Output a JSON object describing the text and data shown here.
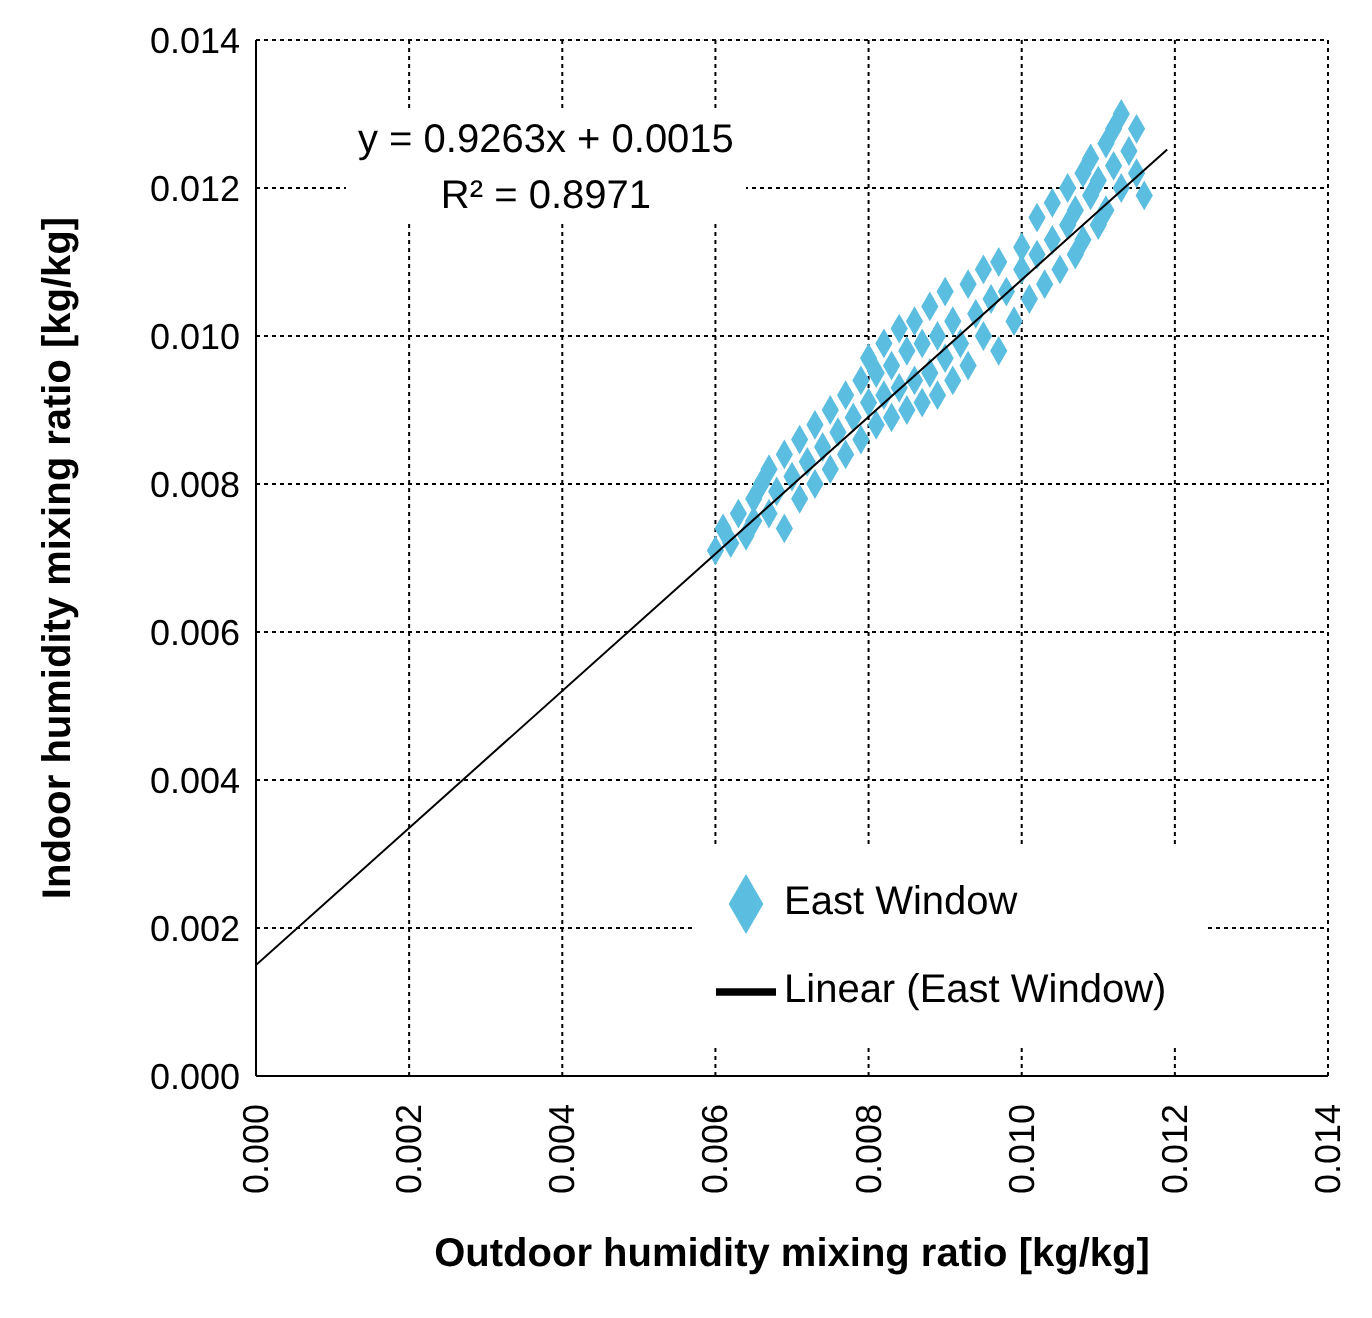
{
  "chart_data": {
    "type": "scatter",
    "xlabel": "Outdoor humidity mixing ratio [kg/kg]",
    "ylabel": "Indoor humidity mixing ratio [kg/kg]",
    "annotations": [
      "y = 0.9263x + 0.0015",
      "R² = 0.8971"
    ],
    "xlim": [
      0,
      0.014
    ],
    "ylim": [
      0,
      0.014
    ],
    "xticks": [
      {
        "value": 0,
        "label": "0.000"
      },
      {
        "value": 0.002,
        "label": "0.002"
      },
      {
        "value": 0.004,
        "label": "0.004"
      },
      {
        "value": 0.006,
        "label": "0.006"
      },
      {
        "value": 0.008,
        "label": "0.008"
      },
      {
        "value": 0.01,
        "label": "0.010"
      },
      {
        "value": 0.012,
        "label": "0.012"
      },
      {
        "value": 0.014,
        "label": "0.014"
      }
    ],
    "yticks": [
      {
        "value": 0,
        "label": "0.000"
      },
      {
        "value": 0.002,
        "label": "0.002"
      },
      {
        "value": 0.004,
        "label": "0.004"
      },
      {
        "value": 0.006,
        "label": "0.006"
      },
      {
        "value": 0.008,
        "label": "0.008"
      },
      {
        "value": 0.01,
        "label": "0.010"
      },
      {
        "value": 0.012,
        "label": "0.012"
      },
      {
        "value": 0.014,
        "label": "0.014"
      }
    ],
    "grid": true,
    "legend": "bottom right",
    "marker": "diamond",
    "series": [
      {
        "name": "East Window",
        "type": "scatter",
        "color": "#5bbde0",
        "x": [
          0.006,
          0.0061,
          0.0062,
          0.0063,
          0.0064,
          0.0065,
          0.0065,
          0.0066,
          0.0067,
          0.0067,
          0.0068,
          0.0069,
          0.0069,
          0.007,
          0.0071,
          0.0071,
          0.0072,
          0.0073,
          0.0073,
          0.0074,
          0.0075,
          0.0075,
          0.0076,
          0.0077,
          0.0077,
          0.0078,
          0.0079,
          0.0079,
          0.008,
          0.008,
          0.0081,
          0.0081,
          0.0082,
          0.0082,
          0.0083,
          0.0083,
          0.0084,
          0.0084,
          0.0085,
          0.0085,
          0.0086,
          0.0086,
          0.0087,
          0.0087,
          0.0088,
          0.0088,
          0.0089,
          0.0089,
          0.009,
          0.009,
          0.0091,
          0.0091,
          0.0092,
          0.0093,
          0.0093,
          0.0094,
          0.0095,
          0.0095,
          0.0096,
          0.0097,
          0.0097,
          0.0098,
          0.0099,
          0.01,
          0.01,
          0.0101,
          0.0102,
          0.0102,
          0.0103,
          0.0104,
          0.0104,
          0.0105,
          0.0106,
          0.0106,
          0.0107,
          0.0107,
          0.0108,
          0.0108,
          0.0109,
          0.0109,
          0.011,
          0.011,
          0.0111,
          0.0111,
          0.0112,
          0.0112,
          0.0113,
          0.0113,
          0.0114,
          0.0115,
          0.0115,
          0.0116
        ],
        "values": [
          0.0071,
          0.0074,
          0.0072,
          0.0076,
          0.0073,
          0.0078,
          0.0075,
          0.008,
          0.0076,
          0.0082,
          0.0079,
          0.0074,
          0.0084,
          0.0081,
          0.0078,
          0.0086,
          0.0083,
          0.008,
          0.0088,
          0.0085,
          0.0082,
          0.009,
          0.0087,
          0.0084,
          0.0092,
          0.0089,
          0.0086,
          0.0094,
          0.0091,
          0.0097,
          0.0088,
          0.0095,
          0.0092,
          0.0099,
          0.0089,
          0.0096,
          0.0093,
          0.0101,
          0.009,
          0.0098,
          0.0094,
          0.0102,
          0.0091,
          0.0099,
          0.0095,
          0.0104,
          0.0092,
          0.01,
          0.0097,
          0.0106,
          0.0094,
          0.0102,
          0.0099,
          0.0096,
          0.0107,
          0.0103,
          0.01,
          0.0109,
          0.0105,
          0.0098,
          0.011,
          0.0106,
          0.0102,
          0.0109,
          0.0112,
          0.0105,
          0.0111,
          0.0116,
          0.0107,
          0.0113,
          0.0118,
          0.0109,
          0.0115,
          0.012,
          0.0111,
          0.0117,
          0.0122,
          0.0113,
          0.0119,
          0.0124,
          0.0115,
          0.0121,
          0.0126,
          0.0117,
          0.0123,
          0.0128,
          0.012,
          0.013,
          0.0125,
          0.0122,
          0.0128,
          0.0119
        ]
      },
      {
        "name": "Linear (East Window)",
        "type": "line",
        "color": "#000000",
        "marker": "none",
        "x": [
          0,
          0.0119
        ],
        "values": [
          0.0015,
          0.01252
        ]
      }
    ]
  }
}
